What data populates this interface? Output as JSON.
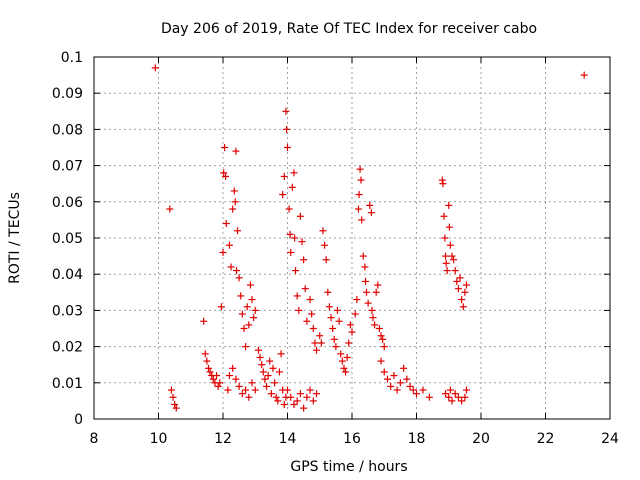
{
  "chart_data": {
    "type": "scatter",
    "title": "Day 206 of 2019, Rate Of TEC Index for receiver cabo",
    "xlabel": "GPS time / hours",
    "ylabel": "ROTI / TECUs",
    "xlim": [
      8,
      24
    ],
    "ylim": [
      0,
      0.1
    ],
    "x_ticks": [
      "8",
      "10",
      "12",
      "14",
      "16",
      "18",
      "20",
      "22",
      "24"
    ],
    "y_ticks": [
      "0",
      "0.01",
      "0.02",
      "0.03",
      "0.04",
      "0.05",
      "0.06",
      "0.07",
      "0.08",
      "0.09",
      "0.1"
    ],
    "grid": true,
    "marker": "plus",
    "color": "#e00000",
    "series": [
      {
        "points": [
          [
            9.9,
            0.097
          ],
          [
            10.35,
            0.058
          ],
          [
            10.4,
            0.008
          ],
          [
            10.45,
            0.006
          ],
          [
            10.5,
            0.004
          ],
          [
            10.55,
            0.003
          ],
          [
            11.4,
            0.027
          ],
          [
            11.45,
            0.018
          ],
          [
            11.5,
            0.016
          ],
          [
            11.55,
            0.014
          ],
          [
            11.6,
            0.013
          ],
          [
            11.65,
            0.012
          ],
          [
            11.7,
            0.011
          ],
          [
            11.75,
            0.01
          ],
          [
            11.8,
            0.012
          ],
          [
            11.85,
            0.009
          ],
          [
            11.9,
            0.01
          ],
          [
            11.95,
            0.031
          ],
          [
            12.0,
            0.046
          ],
          [
            12.02,
            0.068
          ],
          [
            12.05,
            0.075
          ],
          [
            12.08,
            0.067
          ],
          [
            12.1,
            0.054
          ],
          [
            12.15,
            0.008
          ],
          [
            12.2,
            0.048
          ],
          [
            12.25,
            0.042
          ],
          [
            12.3,
            0.058
          ],
          [
            12.35,
            0.063
          ],
          [
            12.38,
            0.06
          ],
          [
            12.4,
            0.074
          ],
          [
            12.42,
            0.041
          ],
          [
            12.45,
            0.052
          ],
          [
            12.5,
            0.039
          ],
          [
            12.55,
            0.034
          ],
          [
            12.6,
            0.029
          ],
          [
            12.65,
            0.025
          ],
          [
            12.7,
            0.02
          ],
          [
            12.75,
            0.031
          ],
          [
            12.8,
            0.026
          ],
          [
            12.85,
            0.037
          ],
          [
            12.9,
            0.033
          ],
          [
            12.95,
            0.028
          ],
          [
            13.0,
            0.03
          ],
          [
            12.2,
            0.012
          ],
          [
            12.3,
            0.014
          ],
          [
            12.4,
            0.011
          ],
          [
            12.5,
            0.009
          ],
          [
            12.6,
            0.007
          ],
          [
            12.7,
            0.008
          ],
          [
            12.8,
            0.006
          ],
          [
            12.9,
            0.01
          ],
          [
            13.0,
            0.008
          ],
          [
            13.1,
            0.019
          ],
          [
            13.15,
            0.017
          ],
          [
            13.2,
            0.015
          ],
          [
            13.25,
            0.013
          ],
          [
            13.3,
            0.011
          ],
          [
            13.35,
            0.009
          ],
          [
            13.4,
            0.012
          ],
          [
            13.45,
            0.016
          ],
          [
            13.5,
            0.007
          ],
          [
            13.55,
            0.014
          ],
          [
            13.6,
            0.01
          ],
          [
            13.65,
            0.006
          ],
          [
            13.7,
            0.005
          ],
          [
            13.75,
            0.013
          ],
          [
            13.8,
            0.018
          ],
          [
            13.85,
            0.008
          ],
          [
            13.9,
            0.004
          ],
          [
            13.95,
            0.006
          ],
          [
            13.85,
            0.062
          ],
          [
            13.9,
            0.067
          ],
          [
            13.95,
            0.085
          ],
          [
            13.97,
            0.08
          ],
          [
            14.0,
            0.075
          ],
          [
            14.05,
            0.058
          ],
          [
            14.08,
            0.051
          ],
          [
            14.1,
            0.046
          ],
          [
            14.15,
            0.064
          ],
          [
            14.2,
            0.068
          ],
          [
            14.22,
            0.05
          ],
          [
            14.25,
            0.041
          ],
          [
            14.3,
            0.034
          ],
          [
            14.35,
            0.03
          ],
          [
            14.4,
            0.056
          ],
          [
            14.45,
            0.049
          ],
          [
            14.5,
            0.044
          ],
          [
            14.55,
            0.036
          ],
          [
            14.6,
            0.027
          ],
          [
            14.7,
            0.033
          ],
          [
            14.75,
            0.029
          ],
          [
            14.8,
            0.025
          ],
          [
            14.85,
            0.021
          ],
          [
            14.9,
            0.019
          ],
          [
            14.0,
            0.008
          ],
          [
            14.1,
            0.006
          ],
          [
            14.2,
            0.004
          ],
          [
            14.3,
            0.005
          ],
          [
            14.4,
            0.007
          ],
          [
            14.5,
            0.003
          ],
          [
            14.6,
            0.006
          ],
          [
            14.7,
            0.008
          ],
          [
            14.8,
            0.005
          ],
          [
            14.9,
            0.007
          ],
          [
            15.0,
            0.023
          ],
          [
            15.05,
            0.021
          ],
          [
            15.1,
            0.052
          ],
          [
            15.15,
            0.048
          ],
          [
            15.2,
            0.044
          ],
          [
            15.25,
            0.035
          ],
          [
            15.3,
            0.031
          ],
          [
            15.35,
            0.028
          ],
          [
            15.4,
            0.025
          ],
          [
            15.45,
            0.022
          ],
          [
            15.5,
            0.02
          ],
          [
            15.55,
            0.03
          ],
          [
            15.6,
            0.027
          ],
          [
            15.65,
            0.018
          ],
          [
            15.7,
            0.016
          ],
          [
            15.75,
            0.014
          ],
          [
            15.8,
            0.013
          ],
          [
            15.85,
            0.017
          ],
          [
            15.9,
            0.021
          ],
          [
            15.95,
            0.026
          ],
          [
            16.0,
            0.024
          ],
          [
            16.1,
            0.029
          ],
          [
            16.15,
            0.033
          ],
          [
            16.2,
            0.058
          ],
          [
            16.22,
            0.062
          ],
          [
            16.25,
            0.069
          ],
          [
            16.28,
            0.066
          ],
          [
            16.3,
            0.055
          ],
          [
            16.35,
            0.045
          ],
          [
            16.4,
            0.042
          ],
          [
            16.42,
            0.038
          ],
          [
            16.45,
            0.035
          ],
          [
            16.5,
            0.032
          ],
          [
            16.55,
            0.059
          ],
          [
            16.6,
            0.057
          ],
          [
            16.62,
            0.03
          ],
          [
            16.65,
            0.028
          ],
          [
            16.7,
            0.026
          ],
          [
            16.75,
            0.035
          ],
          [
            16.8,
            0.037
          ],
          [
            16.85,
            0.025
          ],
          [
            16.9,
            0.023
          ],
          [
            16.95,
            0.022
          ],
          [
            17.0,
            0.02
          ],
          [
            16.9,
            0.016
          ],
          [
            17.0,
            0.013
          ],
          [
            17.1,
            0.011
          ],
          [
            17.2,
            0.009
          ],
          [
            17.3,
            0.012
          ],
          [
            17.4,
            0.008
          ],
          [
            17.5,
            0.01
          ],
          [
            17.6,
            0.014
          ],
          [
            17.7,
            0.011
          ],
          [
            17.8,
            0.009
          ],
          [
            17.9,
            0.008
          ],
          [
            18.0,
            0.007
          ],
          [
            18.2,
            0.008
          ],
          [
            18.4,
            0.006
          ],
          [
            18.8,
            0.066
          ],
          [
            18.82,
            0.065
          ],
          [
            18.85,
            0.056
          ],
          [
            18.88,
            0.05
          ],
          [
            18.9,
            0.045
          ],
          [
            18.92,
            0.043
          ],
          [
            18.95,
            0.041
          ],
          [
            19.0,
            0.059
          ],
          [
            19.02,
            0.053
          ],
          [
            19.05,
            0.048
          ],
          [
            19.1,
            0.045
          ],
          [
            19.15,
            0.044
          ],
          [
            19.2,
            0.041
          ],
          [
            19.25,
            0.038
          ],
          [
            19.3,
            0.036
          ],
          [
            19.35,
            0.039
          ],
          [
            19.4,
            0.033
          ],
          [
            19.45,
            0.031
          ],
          [
            19.5,
            0.035
          ],
          [
            19.55,
            0.037
          ],
          [
            18.9,
            0.007
          ],
          [
            19.0,
            0.006
          ],
          [
            19.05,
            0.008
          ],
          [
            19.1,
            0.005
          ],
          [
            19.2,
            0.007
          ],
          [
            19.3,
            0.006
          ],
          [
            19.4,
            0.005
          ],
          [
            19.5,
            0.006
          ],
          [
            19.55,
            0.008
          ],
          [
            23.2,
            0.095
          ]
        ]
      }
    ]
  }
}
